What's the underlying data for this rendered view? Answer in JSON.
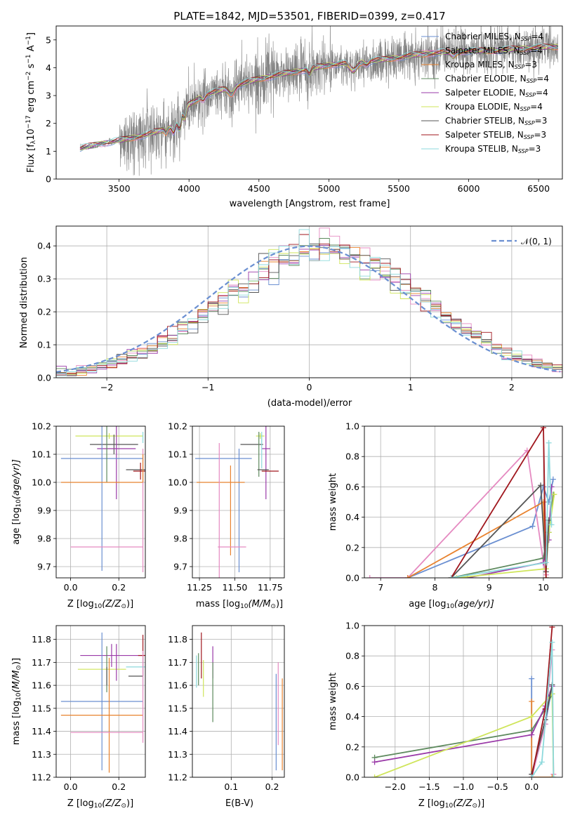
{
  "colors": {
    "Chabrier MILES": "#6a8fd1",
    "Salpeter MILES": "#e58ac1",
    "Kroupa MILES": "#e8822e",
    "Chabrier ELODIE": "#5e8a5e",
    "Salpeter ELODIE": "#9a3aa8",
    "Kroupa ELODIE": "#cfe55a",
    "Chabrier STELIB": "#555555",
    "Salpeter STELIB": "#a0171e",
    "Kroupa STELIB": "#8dd9dc",
    "data": "#808080",
    "gaussian": "#6a8fd1"
  },
  "chart_data": [
    {
      "id": "spectrum",
      "type": "line",
      "title": "PLATE=1842, MJD=53501, FIBERID=0399, z=0.417",
      "xlabel": "wavelength [Angstrom, rest frame]",
      "ylabel_main": "Flux [f",
      "ylabel_sub1": "λ",
      "ylabel_mid1": "10",
      "ylabel_sup1": "−17",
      "ylabel_mid2": " erg cm",
      "ylabel_sup2": "−2",
      "ylabel_mid3": " s",
      "ylabel_sup3": "−1",
      "ylabel_mid4": " A",
      "ylabel_sup4": "−1",
      "ylabel_end": "]",
      "xlim": [
        3050,
        6670
      ],
      "ylim": [
        0,
        5.5
      ],
      "xticks": [
        3500,
        4000,
        4500,
        5000,
        5500,
        6000,
        6500
      ],
      "yticks": [
        0,
        1,
        2,
        3,
        4,
        5
      ],
      "grid": false,
      "legend_position": "upper-right",
      "model_breakpoints": {
        "x": [
          3220,
          3400,
          3520,
          3700,
          3900,
          3950,
          4100,
          4300,
          4500,
          4700,
          4900,
          5000,
          5200,
          5400,
          5600,
          5800,
          6000,
          6200,
          6400,
          6600
        ],
        "y": [
          1.1,
          1.3,
          1.4,
          1.6,
          1.9,
          2.5,
          3.0,
          3.3,
          3.6,
          3.8,
          4.0,
          4.1,
          4.2,
          4.3,
          4.45,
          4.55,
          4.6,
          4.62,
          4.7,
          4.75
        ]
      },
      "series": [
        {
          "name": "Chabrier MILES",
          "nssp": "4"
        },
        {
          "name": "Salpeter MILES",
          "nssp": "4"
        },
        {
          "name": "Kroupa MILES",
          "nssp": "3"
        },
        {
          "name": "Chabrier ELODIE",
          "nssp": "4"
        },
        {
          "name": "Salpeter ELODIE",
          "nssp": "4"
        },
        {
          "name": "Kroupa ELODIE",
          "nssp": "4"
        },
        {
          "name": "Chabrier STELIB",
          "nssp": "3"
        },
        {
          "name": "Salpeter STELIB",
          "nssp": "3"
        },
        {
          "name": "Kroupa STELIB",
          "nssp": "3"
        }
      ]
    },
    {
      "id": "residuals",
      "type": "line",
      "xlabel": "(data-model)/error",
      "ylabel": "Normed distribution",
      "xlim": [
        -2.5,
        2.5
      ],
      "ylim": [
        0,
        0.46
      ],
      "xticks": [
        -2,
        -1,
        0,
        1,
        2
      ],
      "yticks": [
        0.0,
        0.1,
        0.2,
        0.3,
        0.4
      ],
      "grid": true,
      "legend_position": "upper-right",
      "gaussian_label": "𝒩(0, 1)",
      "bin_width": 0.1
    },
    {
      "id": "age-vs-Z",
      "type": "scatter",
      "xlabel": "Z [log",
      "xlabel_sub": "10",
      "xlabel_end": "(Z/Z",
      "xlabel_sub2": "⊙",
      "xlabel_close": ")]",
      "ylabel": "age  [log",
      "ylabel_sub": "10",
      "ylabel_end": "(age/yr)]",
      "xlim": [
        -0.06,
        0.31
      ],
      "ylim": [
        9.66,
        10.2
      ],
      "xticks": [
        0.0,
        0.2
      ],
      "yticks": [
        9.7,
        9.8,
        9.9,
        10.0,
        10.1,
        10.2
      ],
      "grid": true,
      "points": [
        {
          "series": "Kroupa ELODIE",
          "x": 0.16,
          "y": 10.165,
          "xerr": 0.14,
          "yerr": 0.01
        },
        {
          "series": "Kroupa STELIB",
          "x": 0.3,
          "y": 10.16,
          "xerr": 0.0,
          "yerr": 0.02
        },
        {
          "series": "Chabrier STELIB",
          "x": 0.18,
          "y": 10.135,
          "xerr": 0.1,
          "yerr": 0.035
        },
        {
          "series": "Salpeter ELODIE",
          "x": 0.19,
          "y": 10.12,
          "xerr": 0.08,
          "yerr": 0.18
        },
        {
          "series": "Chabrier MILES",
          "x": 0.13,
          "y": 10.085,
          "xerr": 0.17,
          "yerr": 0.4
        },
        {
          "series": "Chabrier ELODIE",
          "x": 0.15,
          "y": 10.1,
          "xerr": 0.0,
          "yerr": 0.1
        },
        {
          "series": "Chabrier STELIB",
          "x": 0.27,
          "y": 10.045,
          "xerr": 0.04,
          "yerr": 0.0
        },
        {
          "series": "Salpeter STELIB",
          "x": 0.29,
          "y": 10.04,
          "xerr": 0.03,
          "yerr": 0.03
        },
        {
          "series": "Kroupa MILES",
          "x": 0.13,
          "y": 10.0,
          "xerr": 0.17,
          "yerr": 0.0
        },
        {
          "series": "Salpeter MILES",
          "x": 0.15,
          "y": 9.77,
          "xerr": 0.15,
          "yerr": 0.0
        },
        {
          "series": "Salpeter MILES",
          "x": 0.3,
          "y": 9.9,
          "xerr": 0.0,
          "yerr": 0.22
        },
        {
          "series": "Kroupa MILES",
          "x": 0.3,
          "y": 10.05,
          "xerr": 0.0,
          "yerr": 0.05
        }
      ]
    },
    {
      "id": "age-vs-mass",
      "type": "scatter",
      "xlabel": "mass [log",
      "xlabel_sub": "10",
      "xlabel_end": "(M/M",
      "xlabel_sub2": "⊙",
      "xlabel_close": ")]",
      "xlim": [
        11.2,
        11.85
      ],
      "ylim": [
        9.66,
        10.2
      ],
      "xticks": [
        11.25,
        11.5,
        11.75
      ],
      "yticks": [
        9.7,
        9.8,
        9.9,
        10.0,
        10.1,
        10.2
      ],
      "grid": true,
      "points": [
        {
          "series": "Kroupa ELODIE",
          "x": 11.68,
          "y": 10.165,
          "xerr": 0.03,
          "yerr": 0.01
        },
        {
          "series": "Kroupa STELIB",
          "x": 11.69,
          "y": 10.16,
          "xerr": 0.0,
          "yerr": 0.02
        },
        {
          "series": "Chabrier STELIB",
          "x": 11.62,
          "y": 10.135,
          "xerr": 0.08,
          "yerr": 0.0
        },
        {
          "series": "Salpeter ELODIE",
          "x": 11.72,
          "y": 10.12,
          "xerr": 0.03,
          "yerr": 0.18
        },
        {
          "series": "Chabrier MILES",
          "x": 11.42,
          "y": 10.085,
          "xerr": 0.2,
          "yerr": 0.0
        },
        {
          "series": "Chabrier MILES",
          "x": 11.53,
          "y": 9.9,
          "xerr": 0.0,
          "yerr": 0.22
        },
        {
          "series": "Chabrier ELODIE",
          "x": 11.67,
          "y": 10.1,
          "xerr": 0.0,
          "yerr": 0.08
        },
        {
          "series": "Chabrier STELIB",
          "x": 11.7,
          "y": 10.045,
          "xerr": 0.04,
          "yerr": 0.0
        },
        {
          "series": "Salpeter STELIB",
          "x": 11.75,
          "y": 10.04,
          "xerr": 0.06,
          "yerr": 0.0
        },
        {
          "series": "Kroupa MILES",
          "x": 11.4,
          "y": 10.0,
          "xerr": 0.17,
          "yerr": 0.0
        },
        {
          "series": "Kroupa MILES",
          "x": 11.47,
          "y": 9.9,
          "xerr": 0.0,
          "yerr": 0.16
        },
        {
          "series": "Salpeter MILES",
          "x": 11.48,
          "y": 9.77,
          "xerr": 0.1,
          "yerr": 0.0
        },
        {
          "series": "Salpeter MILES",
          "x": 11.39,
          "y": 9.9,
          "xerr": 0.0,
          "yerr": 0.24
        },
        {
          "series": "Kroupa STELIB",
          "x": 11.69,
          "y": 10.11,
          "xerr": 0.0,
          "yerr": 0.06
        }
      ]
    },
    {
      "id": "weight-vs-age",
      "type": "line",
      "xlabel": "age  [log",
      "xlabel_sub": "10",
      "xlabel_end": "(age/yr)]",
      "ylabel": "mass weight",
      "xlim": [
        6.7,
        10.35
      ],
      "ylim": [
        0,
        1.0
      ],
      "xticks": [
        7,
        8,
        9,
        10
      ],
      "yticks": [
        0.0,
        0.2,
        0.4,
        0.6,
        0.8,
        1.0
      ],
      "grid": true,
      "series": [
        {
          "name": "Chabrier MILES",
          "x": [
            7.5,
            9.8,
            10.0,
            10.1,
            10.18
          ],
          "y": [
            0.0,
            0.34,
            0.6,
            0.5,
            0.65
          ]
        },
        {
          "name": "Salpeter MILES",
          "x": [
            6.8,
            7.5,
            9.7,
            10.0,
            10.05
          ],
          "y": [
            0.0,
            0.0,
            0.84,
            0.1,
            0.02
          ]
        },
        {
          "name": "Kroupa MILES",
          "x": [
            7.5,
            10.0,
            10.05
          ],
          "y": [
            0.0,
            0.5,
            0.0
          ]
        },
        {
          "name": "Chabrier ELODIE",
          "x": [
            8.3,
            10.0,
            10.1,
            10.18
          ],
          "y": [
            0.0,
            0.13,
            0.3,
            0.55
          ]
        },
        {
          "name": "Salpeter ELODIE",
          "x": [
            8.6,
            10.0,
            10.1,
            10.15
          ],
          "y": [
            0.0,
            0.1,
            0.25,
            0.6
          ]
        },
        {
          "name": "Kroupa ELODIE",
          "x": [
            8.4,
            10.05,
            10.1,
            10.2
          ],
          "y": [
            0.0,
            0.06,
            0.3,
            0.55
          ]
        },
        {
          "name": "Chabrier STELIB",
          "x": [
            8.3,
            9.95,
            10.05,
            10.1
          ],
          "y": [
            0.0,
            0.61,
            0.04,
            0.38
          ]
        },
        {
          "name": "Salpeter STELIB",
          "x": [
            8.3,
            10.0,
            10.05
          ],
          "y": [
            0.0,
            0.99,
            0.0
          ]
        },
        {
          "name": "Kroupa STELIB",
          "x": [
            8.3,
            10.05,
            10.1,
            10.15
          ],
          "y": [
            0.0,
            0.1,
            0.89,
            0.35
          ]
        }
      ]
    },
    {
      "id": "mass-vs-Z",
      "type": "scatter",
      "xlabel": "Z [log",
      "xlabel_sub": "10",
      "xlabel_end": "(Z/Z",
      "xlabel_sub2": "⊙",
      "xlabel_close": ")]",
      "ylabel": "mass [log",
      "ylabel_sub": "10",
      "ylabel_end": "(M/M",
      "ylabel_sub2": "⊙",
      "ylabel_close": ")]",
      "xlim": [
        -0.06,
        0.31
      ],
      "ylim": [
        11.2,
        11.86
      ],
      "xticks": [
        0.0,
        0.2
      ],
      "yticks": [
        11.2,
        11.3,
        11.4,
        11.5,
        11.6,
        11.7,
        11.8
      ],
      "grid": true,
      "points": [
        {
          "series": "Salpeter ELODIE",
          "x": 0.17,
          "y": 11.73,
          "xerr": 0.13,
          "yerr": 0.05
        },
        {
          "series": "Salpeter STELIB",
          "x": 0.3,
          "y": 11.73,
          "xerr": 0.02,
          "yerr": 0.09
        },
        {
          "series": "Kroupa STELIB",
          "x": 0.27,
          "y": 11.68,
          "xerr": 0.04,
          "yerr": 0.0
        },
        {
          "series": "Kroupa ELODIE",
          "x": 0.13,
          "y": 11.67,
          "xerr": 0.1,
          "yerr": 0.0
        },
        {
          "series": "Chabrier ELODIE",
          "x": 0.15,
          "y": 11.67,
          "xerr": 0.0,
          "yerr": 0.1
        },
        {
          "series": "Chabrier STELIB",
          "x": 0.15,
          "y": 11.64,
          "xerr": 0.0,
          "yerr": 0.04
        },
        {
          "series": "Chabrier STELIB",
          "x": 0.27,
          "y": 11.64,
          "xerr": 0.03,
          "yerr": 0.0
        },
        {
          "series": "Kroupa STELIB",
          "x": 0.3,
          "y": 11.65,
          "xerr": 0.0,
          "yerr": 0.07
        },
        {
          "series": "Chabrier MILES",
          "x": 0.13,
          "y": 11.53,
          "xerr": 0.17,
          "yerr": 0.3
        },
        {
          "series": "Kroupa MILES",
          "x": 0.13,
          "y": 11.47,
          "xerr": 0.17,
          "yerr": 0.0
        },
        {
          "series": "Kroupa MILES",
          "x": 0.16,
          "y": 11.47,
          "xerr": 0.0,
          "yerr": 0.25
        },
        {
          "series": "Salpeter MILES",
          "x": 0.15,
          "y": 11.395,
          "xerr": 0.15,
          "yerr": 0.0
        },
        {
          "series": "Salpeter MILES",
          "x": 0.3,
          "y": 11.55,
          "xerr": 0.0,
          "yerr": 0.2
        },
        {
          "series": "Salpeter ELODIE",
          "x": 0.19,
          "y": 11.7,
          "xerr": 0.0,
          "yerr": 0.08
        }
      ]
    },
    {
      "id": "mass-vs-EBV",
      "type": "scatter",
      "xlabel": "E(B-V)",
      "xlim": [
        0.005,
        0.23
      ],
      "ylim": [
        11.2,
        11.86
      ],
      "xticks": [
        0.1,
        0.2
      ],
      "yticks": [
        11.2,
        11.3,
        11.4,
        11.5,
        11.6,
        11.7,
        11.8
      ],
      "grid": true,
      "points": [
        {
          "series": "Kroupa STELIB",
          "x": 0.015,
          "y": 11.66,
          "xerr": 0.0,
          "yerr": 0.07
        },
        {
          "series": "Chabrier ELODIE",
          "x": 0.02,
          "y": 11.67,
          "xerr": 0.0,
          "yerr": 0.07
        },
        {
          "series": "Salpeter STELIB",
          "x": 0.027,
          "y": 11.73,
          "xerr": 0.0,
          "yerr": 0.1
        },
        {
          "series": "Kroupa ELODIE",
          "x": 0.032,
          "y": 11.63,
          "xerr": 0.0,
          "yerr": 0.08
        },
        {
          "series": "Salpeter ELODIE",
          "x": 0.055,
          "y": 11.7,
          "xerr": 0.0,
          "yerr": 0.07
        },
        {
          "series": "Chabrier ELODIE",
          "x": 0.055,
          "y": 11.57,
          "xerr": 0.0,
          "yerr": 0.13
        },
        {
          "series": "Chabrier MILES",
          "x": 0.21,
          "y": 11.44,
          "xerr": 0.0,
          "yerr": 0.21
        },
        {
          "series": "Salpeter MILES",
          "x": 0.215,
          "y": 11.52,
          "xerr": 0.0,
          "yerr": 0.18
        },
        {
          "series": "Kroupa MILES",
          "x": 0.225,
          "y": 11.43,
          "xerr": 0.0,
          "yerr": 0.2
        }
      ]
    },
    {
      "id": "weight-vs-Z",
      "type": "line",
      "xlabel": "Z [log",
      "xlabel_sub": "10",
      "xlabel_end": "(Z/Z",
      "xlabel_sub2": "⊙",
      "xlabel_close": ")]",
      "ylabel": "mass weight",
      "xlim": [
        -2.45,
        0.45
      ],
      "ylim": [
        0,
        1.0
      ],
      "xticks": [
        -2.0,
        -1.5,
        -1.0,
        -0.5,
        0.0
      ],
      "yticks": [
        0.0,
        0.2,
        0.4,
        0.6,
        0.8,
        1.0
      ],
      "grid": true,
      "series": [
        {
          "name": "Chabrier MILES",
          "x": [
            0.0,
            0.0,
            0.2,
            0.3
          ],
          "y": [
            0.65,
            0.0,
            0.35,
            0.6
          ]
        },
        {
          "name": "Salpeter MILES",
          "x": [
            0.0,
            0.2,
            0.3,
            0.32
          ],
          "y": [
            0.0,
            0.35,
            0.84,
            0.02
          ]
        },
        {
          "name": "Kroupa MILES",
          "x": [
            0.0,
            0.0,
            0.3
          ],
          "y": [
            0.5,
            0.0,
            0.0
          ]
        },
        {
          "name": "Chabrier ELODIE",
          "x": [
            -2.3,
            0.0,
            0.2,
            0.3
          ],
          "y": [
            0.13,
            0.31,
            0.45,
            0.55
          ]
        },
        {
          "name": "Salpeter ELODIE",
          "x": [
            -2.3,
            0.0,
            0.2,
            0.3
          ],
          "y": [
            0.1,
            0.28,
            0.47,
            0.6
          ]
        },
        {
          "name": "Kroupa ELODIE",
          "x": [
            -2.3,
            0.0,
            0.3,
            0.32
          ],
          "y": [
            0.0,
            0.4,
            0.55,
            0.0
          ]
        },
        {
          "name": "Chabrier STELIB",
          "x": [
            0.0,
            0.2,
            0.3
          ],
          "y": [
            0.02,
            0.38,
            0.61
          ]
        },
        {
          "name": "Salpeter STELIB",
          "x": [
            0.0,
            0.2,
            0.3
          ],
          "y": [
            0.0,
            0.45,
            0.99
          ]
        },
        {
          "name": "Kroupa STELIB",
          "x": [
            0.0,
            0.15,
            0.3,
            0.32
          ],
          "y": [
            0.0,
            0.1,
            0.89,
            0.0
          ]
        }
      ]
    }
  ]
}
